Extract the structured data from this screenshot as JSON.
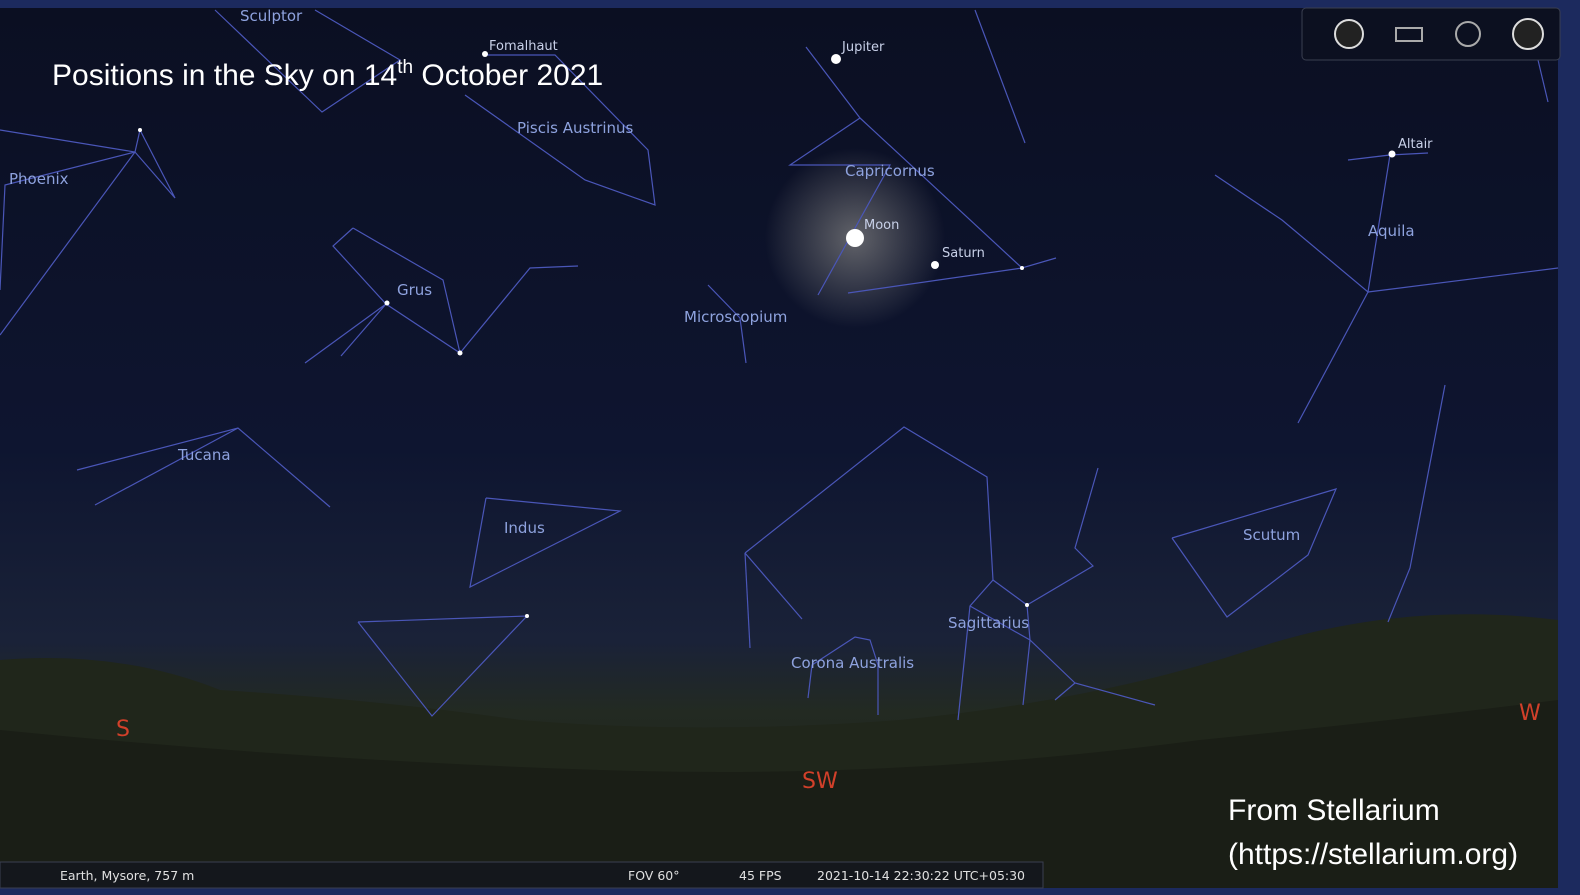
{
  "title": {
    "text": "Positions in the Sky on 14",
    "sup": "th",
    "rest": " October 2021"
  },
  "constellations": [
    "Sculptor",
    "Piscis Austrinus",
    "Phoenix",
    "Capricornus",
    "Grus",
    "Microscopium",
    "Aquila",
    "Tucana",
    "Indus",
    "Scutum",
    "Sagittarius",
    "Corona Australis"
  ],
  "objects": [
    "Fomalhaut",
    "Jupiter",
    "Moon",
    "Saturn",
    "Altair"
  ],
  "cardinals": [
    "S",
    "SW",
    "W"
  ],
  "status_bar": {
    "location": "Earth, Mysore, 757 m",
    "fov": "FOV 60°",
    "fps": "45 FPS",
    "datetime": "2021-10-14 22:30:22 UTC+05:30"
  },
  "credit": [
    "From Stellarium",
    "(https://stellarium.org)"
  ]
}
